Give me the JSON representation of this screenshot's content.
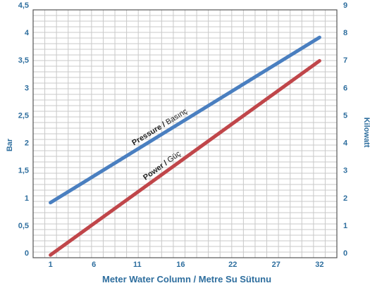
{
  "colors": {
    "axis_text": "#2e6e9e",
    "pressure": "#4a7fc0",
    "power": "#c0464a",
    "grid": "#c9c9c9",
    "frame": "#555555"
  },
  "chart_data": {
    "type": "line",
    "xlabel": "Meter Water Column / Metre Su Sütunu",
    "ylabel": "Bar",
    "y2label": "Kilowatt",
    "xticks": [
      "1",
      "6",
      "11",
      "16",
      "22",
      "27",
      "32"
    ],
    "yticks": [
      "0",
      "0,5",
      "1",
      "1,5",
      "2",
      "2,5",
      "3",
      "3,5",
      "4",
      "4,5"
    ],
    "y2ticks": [
      "0",
      "1",
      "2",
      "3",
      "4",
      "5",
      "6",
      "7",
      "8",
      "9"
    ],
    "xlim": [
      -1,
      34
    ],
    "ylim": [
      0,
      4.5
    ],
    "y2lim": [
      0,
      9
    ],
    "grid": true,
    "series": [
      {
        "axis": "left",
        "label_bold": "Pressure /",
        "label_rest": " Basınç",
        "x": [
          1,
          32
        ],
        "y": [
          1.0,
          4.0
        ]
      },
      {
        "axis": "right",
        "label_bold": "Power /",
        "label_rest": " Güç",
        "x": [
          1,
          32
        ],
        "y": [
          0.1,
          7.15
        ]
      }
    ]
  }
}
